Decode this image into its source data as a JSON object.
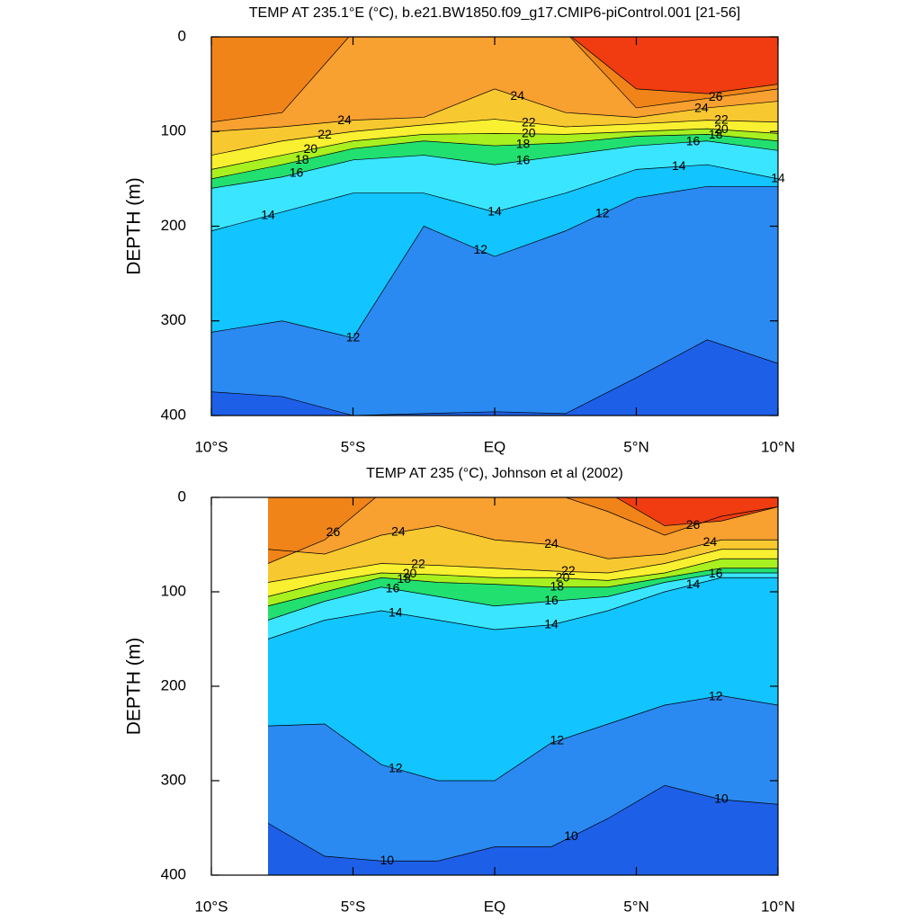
{
  "chart_data": [
    {
      "type": "contour",
      "title": "TEMP AT 235.1°E (°C), b.e21.BW1850.f09_g17.CMIP6-piControl.001 [21-56]",
      "ylabel": "DEPTH (m)",
      "xlim": [
        -10,
        10
      ],
      "ylim": [
        0,
        400
      ],
      "y_reversed": true,
      "xticks": [
        {
          "value": -10,
          "label": "10°S"
        },
        {
          "value": -5,
          "label": "5°S"
        },
        {
          "value": 0,
          "label": "EQ"
        },
        {
          "value": 5,
          "label": "5°N"
        },
        {
          "value": 10,
          "label": "10°N"
        }
      ],
      "yticks": [
        0,
        100,
        200,
        300,
        400
      ],
      "x": [
        -10,
        -7.5,
        -5,
        -2.5,
        0,
        2.5,
        5,
        7.5,
        10
      ],
      "colors": [
        "#1e5fe8",
        "#2a8af2",
        "#12c4ff",
        "#3ae6ff",
        "#22e070",
        "#a8f020",
        "#f8f030",
        "#f8c830",
        "#f8a030",
        "#f08418",
        "#f03c10"
      ],
      "isotherms": [
        {
          "level": 10,
          "depth": [
            375,
            380,
            400,
            398,
            396,
            398,
            360,
            320,
            345
          ]
        },
        {
          "level": 12,
          "depth": [
            312,
            300,
            318,
            200,
            232,
            205,
            170,
            158,
            158
          ]
        },
        {
          "level": 14,
          "depth": [
            205,
            185,
            165,
            165,
            185,
            165,
            140,
            135,
            150
          ]
        },
        {
          "level": 16,
          "depth": [
            160,
            148,
            130,
            125,
            135,
            125,
            115,
            110,
            120
          ]
        },
        {
          "level": 18,
          "depth": [
            150,
            135,
            118,
            110,
            115,
            112,
            105,
            103,
            110
          ]
        },
        {
          "level": 20,
          "depth": [
            140,
            125,
            110,
            103,
            102,
            103,
            100,
            97,
            102
          ]
        },
        {
          "level": 22,
          "depth": [
            125,
            110,
            100,
            93,
            87,
            95,
            92,
            88,
            90
          ]
        },
        {
          "level": 24,
          "depth": [
            100,
            95,
            88,
            85,
            55,
            80,
            85,
            75,
            68
          ]
        },
        {
          "level": 26,
          "depth": [
            90,
            80,
            -5,
            -5,
            -5,
            -5,
            75,
            65,
            55
          ]
        },
        {
          "level": 28,
          "depth": [
            -5,
            -5,
            -5,
            -5,
            -5,
            -5,
            55,
            60,
            50
          ]
        }
      ]
    },
    {
      "type": "contour",
      "title": "TEMP AT 235 (°C), Johnson et al (2002)",
      "ylabel": "DEPTH (m)",
      "xlim": [
        -10,
        10
      ],
      "ylim": [
        0,
        400
      ],
      "y_reversed": true,
      "xticks": [
        {
          "value": -10,
          "label": "10°S"
        },
        {
          "value": -5,
          "label": "5°S"
        },
        {
          "value": 0,
          "label": "EQ"
        },
        {
          "value": 5,
          "label": "5°N"
        },
        {
          "value": 10,
          "label": "10°N"
        }
      ],
      "yticks": [
        0,
        100,
        200,
        300,
        400
      ],
      "x": [
        -8,
        -6,
        -4,
        -2,
        0,
        2,
        4,
        6,
        8,
        10
      ],
      "colors": [
        "#1e5fe8",
        "#2a8af2",
        "#12c4ff",
        "#3ae6ff",
        "#22e070",
        "#a8f020",
        "#f8f030",
        "#f8c830",
        "#f8a030",
        "#f08418",
        "#f03c10"
      ],
      "isotherms": [
        {
          "level": 10,
          "depth": [
            345,
            380,
            385,
            385,
            370,
            370,
            340,
            305,
            320,
            325
          ]
        },
        {
          "level": 12,
          "depth": [
            242,
            240,
            283,
            300,
            300,
            260,
            240,
            220,
            210,
            220
          ]
        },
        {
          "level": 14,
          "depth": [
            150,
            130,
            120,
            130,
            140,
            135,
            120,
            100,
            85,
            85
          ]
        },
        {
          "level": 16,
          "depth": [
            130,
            110,
            95,
            105,
            115,
            110,
            105,
            90,
            80,
            80
          ]
        },
        {
          "level": 18,
          "depth": [
            115,
            100,
            85,
            90,
            92,
            95,
            95,
            85,
            75,
            75
          ]
        },
        {
          "level": 20,
          "depth": [
            105,
            90,
            80,
            82,
            85,
            85,
            88,
            80,
            65,
            65
          ]
        },
        {
          "level": 22,
          "depth": [
            90,
            80,
            70,
            72,
            75,
            78,
            80,
            70,
            55,
            55
          ]
        },
        {
          "level": 24,
          "depth": [
            55,
            60,
            40,
            30,
            45,
            50,
            65,
            60,
            45,
            45
          ]
        },
        {
          "level": 26,
          "depth": [
            70,
            45,
            -5,
            -5,
            -5,
            -5,
            15,
            40,
            20,
            10
          ]
        },
        {
          "level": 28,
          "depth": [
            -5,
            -5,
            -5,
            -5,
            -5,
            -5,
            -5,
            30,
            25,
            10
          ]
        }
      ]
    }
  ]
}
